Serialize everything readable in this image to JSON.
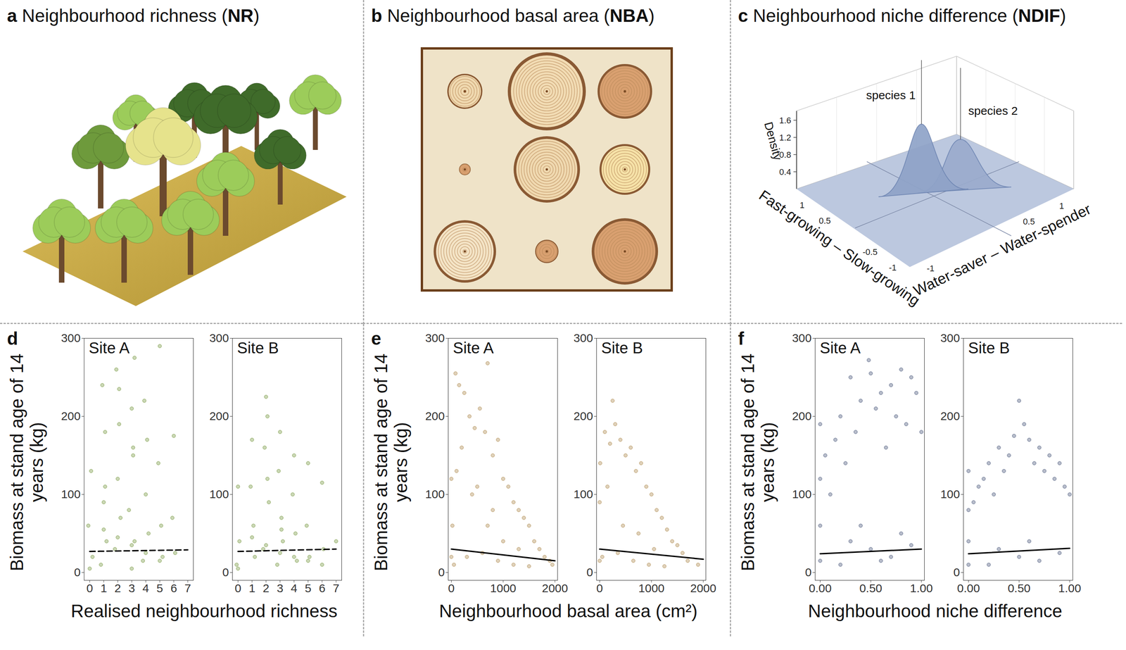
{
  "panels_top": [
    {
      "title": [
        {
          "text": "a",
          "bold": true
        },
        {
          "text": " Neighbourhood richness ("
        },
        {
          "text": "NR",
          "bold": true
        },
        {
          "text": ")"
        }
      ]
    },
    {
      "title": [
        {
          "text": "b",
          "bold": true
        },
        {
          "text": " Neighbourhood basal area ("
        },
        {
          "text": "NBA",
          "bold": true
        },
        {
          "text": ")"
        }
      ]
    },
    {
      "title": [
        {
          "text": "c",
          "bold": true
        },
        {
          "text": " Neighbourhood niche difference ("
        },
        {
          "text": "NDIF",
          "bold": true
        },
        {
          "text": ")"
        }
      ],
      "species": [
        "species 1",
        "species 2"
      ],
      "density_label": "Density",
      "density_ticks": [
        0.4,
        0.8,
        1.2,
        1.6
      ],
      "axis1_label": "Fast-growing – Slow-growing",
      "axis1_ticks": [
        1,
        0.5,
        -0.5,
        -1
      ],
      "axis2_label": "Water-saver – Water-spender",
      "axis2_ticks": [
        -1,
        0.5,
        1
      ]
    }
  ],
  "chart_data": [
    {
      "panel": "d",
      "type": "scatter",
      "xlabel": "Realised neighbourhood richness",
      "ylabel": "Biomass at stand age of 14 years (kg)",
      "color": "#7a9a45",
      "xlim": [
        -0.4,
        7.4
      ],
      "xticks": [
        0,
        1,
        2,
        3,
        4,
        5,
        6,
        7
      ],
      "ylim": [
        -10,
        300
      ],
      "yticks": [
        0,
        100,
        200,
        300
      ],
      "sites": [
        {
          "title": "Site A",
          "x": [
            0.1,
            -0.1,
            0.2,
            0.9,
            1.1,
            1.0,
            1.2,
            0.8,
            1.9,
            2.1,
            2.0,
            2.2,
            1.8,
            3.2,
            3.0,
            3.1,
            2.8,
            3.2,
            3.0,
            3.9,
            4.1,
            4.0,
            4.2,
            3.8,
            5.0,
            4.9,
            5.1,
            5.2,
            6.0,
            5.9,
            6.1,
            0.0,
            1.0,
            2.0,
            3.0,
            4.0,
            5.0,
            2.1,
            3.1,
            1.1
          ],
          "y": [
            130,
            60,
            20,
            240,
            180,
            90,
            40,
            10,
            260,
            190,
            120,
            70,
            30,
            275,
            210,
            150,
            80,
            40,
            5,
            220,
            170,
            100,
            50,
            15,
            290,
            140,
            60,
            20,
            175,
            70,
            25,
            5,
            55,
            45,
            35,
            25,
            15,
            235,
            160,
            110
          ],
          "fit": {
            "x": [
              0,
              7
            ],
            "y": [
              27,
              29
            ],
            "line_style": "dashed",
            "color": "#000000"
          }
        },
        {
          "title": "Site B",
          "x": [
            0.0,
            0.1,
            -0.1,
            1.0,
            0.9,
            1.1,
            1.2,
            2.0,
            1.9,
            2.1,
            2.2,
            1.8,
            3.0,
            2.9,
            3.1,
            3.2,
            2.8,
            4.0,
            3.9,
            4.1,
            4.2,
            5.0,
            4.9,
            5.1,
            6.0,
            6.1,
            7.0,
            0.0,
            1.0,
            2.0,
            3.0,
            4.0,
            5.0,
            6.0,
            2.1,
            3.1
          ],
          "y": [
            110,
            40,
            10,
            170,
            110,
            60,
            20,
            225,
            160,
            200,
            90,
            30,
            180,
            130,
            70,
            40,
            10,
            150,
            100,
            50,
            15,
            140,
            60,
            20,
            115,
            30,
            40,
            5,
            45,
            35,
            25,
            20,
            15,
            10,
            120,
            55
          ],
          "fit": {
            "x": [
              0,
              7
            ],
            "y": [
              27,
              30
            ],
            "line_style": "dashed",
            "color": "#000000"
          }
        }
      ]
    },
    {
      "panel": "e",
      "type": "scatter",
      "xlabel": "Neighbourhood basal area (cm²)",
      "ylabel": "Biomass at stand age of 14 years (kg)",
      "color": "#b08d52",
      "xlim": [
        -60,
        2050
      ],
      "xticks": [
        0,
        1000,
        2000
      ],
      "ylim": [
        -10,
        300
      ],
      "yticks": [
        0,
        100,
        200,
        300
      ],
      "sites": [
        {
          "title": "Site A",
          "x": [
            20,
            80,
            150,
            250,
            350,
            450,
            550,
            650,
            700,
            800,
            900,
            1000,
            1100,
            1200,
            1300,
            1400,
            1500,
            1600,
            1700,
            1800,
            1900,
            1950,
            50,
            300,
            600,
            900,
            1200,
            1500,
            100,
            400,
            700,
            1000,
            1300,
            0,
            0,
            200,
            500,
            800
          ],
          "y": [
            60,
            255,
            240,
            230,
            200,
            185,
            210,
            180,
            268,
            150,
            170,
            120,
            110,
            90,
            80,
            70,
            60,
            40,
            30,
            20,
            15,
            10,
            10,
            20,
            25,
            15,
            10,
            8,
            130,
            100,
            60,
            40,
            30,
            120,
            20,
            160,
            110,
            80
          ],
          "fit": {
            "x": [
              0,
              2000
            ],
            "y": [
              30,
              15
            ],
            "line_style": "solid",
            "color": "#000000"
          }
        },
        {
          "title": "Site B",
          "x": [
            10,
            100,
            200,
            250,
            300,
            400,
            500,
            600,
            700,
            800,
            900,
            1000,
            1100,
            1200,
            1300,
            1400,
            1500,
            1600,
            1700,
            1900,
            50,
            350,
            650,
            950,
            1250,
            0,
            0,
            150,
            450,
            750,
            1050
          ],
          "y": [
            140,
            180,
            165,
            220,
            190,
            170,
            150,
            160,
            130,
            140,
            110,
            100,
            80,
            70,
            55,
            40,
            35,
            25,
            15,
            10,
            20,
            25,
            15,
            10,
            8,
            90,
            15,
            110,
            60,
            50,
            30
          ],
          "fit": {
            "x": [
              0,
              2000
            ],
            "y": [
              30,
              17
            ],
            "line_style": "solid",
            "color": "#000000"
          }
        }
      ]
    },
    {
      "panel": "f",
      "type": "scatter",
      "xlabel": "Neighbourhood niche difference",
      "ylabel": "Biomass at stand age of 14 years (kg)",
      "color": "#4d5b7c",
      "xlim": [
        -0.05,
        1.03
      ],
      "xticks": [
        {
          "value": 0,
          "label": "0.00"
        },
        {
          "value": 0.5,
          "label": "0.50"
        },
        {
          "value": 1,
          "label": "1.00"
        }
      ],
      "ylim": [
        -10,
        300
      ],
      "yticks": [
        0,
        100,
        200,
        300
      ],
      "sites": [
        {
          "title": "Site A",
          "x": [
            0,
            0,
            0,
            0,
            0.05,
            0.1,
            0.15,
            0.2,
            0.25,
            0.3,
            0.35,
            0.4,
            0.48,
            0.5,
            0.55,
            0.6,
            0.65,
            0.7,
            0.75,
            0.8,
            0.85,
            0.9,
            0.95,
            1.0,
            0.3,
            0.5,
            0.7,
            0.9,
            0.2,
            0.6,
            0.8,
            0.4
          ],
          "y": [
            190,
            120,
            60,
            15,
            150,
            100,
            170,
            200,
            140,
            250,
            180,
            220,
            272,
            255,
            210,
            230,
            160,
            240,
            200,
            260,
            190,
            250,
            230,
            180,
            40,
            30,
            20,
            35,
            10,
            15,
            50,
            60
          ],
          "fit": {
            "x": [
              0,
              1
            ],
            "y": [
              24,
              30
            ],
            "line_style": "solid",
            "color": "#000000"
          }
        },
        {
          "title": "Site B",
          "x": [
            0,
            0,
            0,
            0,
            0.05,
            0.1,
            0.15,
            0.2,
            0.25,
            0.3,
            0.35,
            0.4,
            0.45,
            0.5,
            0.55,
            0.6,
            0.65,
            0.7,
            0.75,
            0.8,
            0.85,
            0.9,
            0.95,
            1.0,
            0.3,
            0.5,
            0.7,
            0.9,
            0.2,
            0.6
          ],
          "y": [
            130,
            80,
            40,
            10,
            90,
            110,
            120,
            140,
            100,
            160,
            130,
            150,
            175,
            220,
            190,
            170,
            140,
            160,
            130,
            150,
            120,
            140,
            110,
            100,
            30,
            20,
            15,
            25,
            10,
            40
          ],
          "fit": {
            "x": [
              0,
              1
            ],
            "y": [
              24,
              31
            ],
            "line_style": "solid",
            "color": "#000000"
          }
        }
      ]
    }
  ]
}
